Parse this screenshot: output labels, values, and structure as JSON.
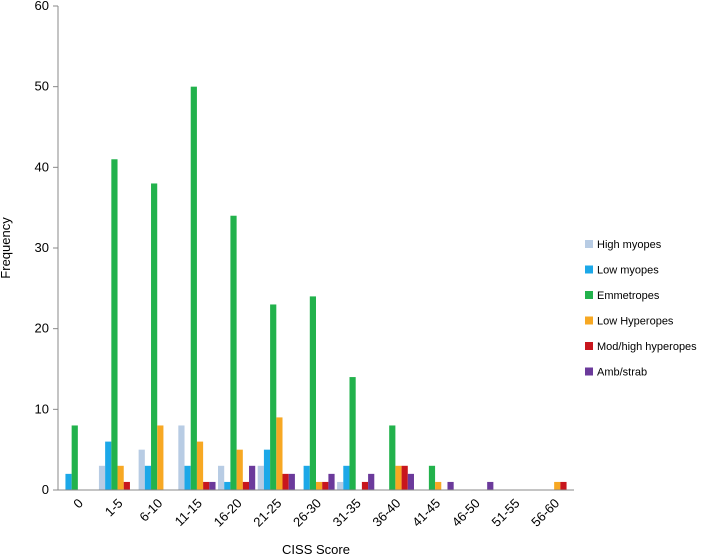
{
  "chart_data": {
    "type": "bar",
    "xlabel": "CISS Score",
    "ylabel": "Frequency",
    "ylim": [
      0,
      60
    ],
    "yticks": [
      "0",
      "10",
      "20",
      "30",
      "40",
      "50",
      "60"
    ],
    "categories": [
      "0",
      "1-5",
      "6-10",
      "11-15",
      "16-20",
      "21-25",
      "26-30",
      "31-35",
      "36-40",
      "41-45",
      "46-50",
      "51-55",
      "56-60"
    ],
    "grid": false,
    "legend_position": "right",
    "series": [
      {
        "name": "High myopes",
        "color": "#b8cce4",
        "values": [
          0,
          3,
          5,
          8,
          3,
          3,
          0,
          1,
          0,
          0,
          0,
          0,
          0
        ]
      },
      {
        "name": "Low myopes",
        "color": "#1ca8e8",
        "values": [
          2,
          6,
          3,
          3,
          1,
          5,
          3,
          3,
          0,
          0,
          0,
          0,
          0
        ]
      },
      {
        "name": "Emmetropes",
        "color": "#22b24c",
        "values": [
          8,
          41,
          38,
          50,
          34,
          23,
          24,
          14,
          8,
          3,
          0,
          0,
          0
        ]
      },
      {
        "name": "Low Hyperopes",
        "color": "#f7a823",
        "values": [
          0,
          3,
          8,
          6,
          5,
          9,
          1,
          0,
          3,
          1,
          0,
          0,
          1
        ]
      },
      {
        "name": "Mod/high hyperopes",
        "color": "#c8161d",
        "values": [
          0,
          1,
          0,
          1,
          1,
          2,
          1,
          1,
          3,
          0,
          0,
          0,
          1
        ]
      },
      {
        "name": "Amb/strab",
        "color": "#6b3a9b",
        "values": [
          0,
          0,
          0,
          1,
          3,
          2,
          2,
          2,
          2,
          1,
          1,
          0,
          0
        ]
      }
    ]
  }
}
